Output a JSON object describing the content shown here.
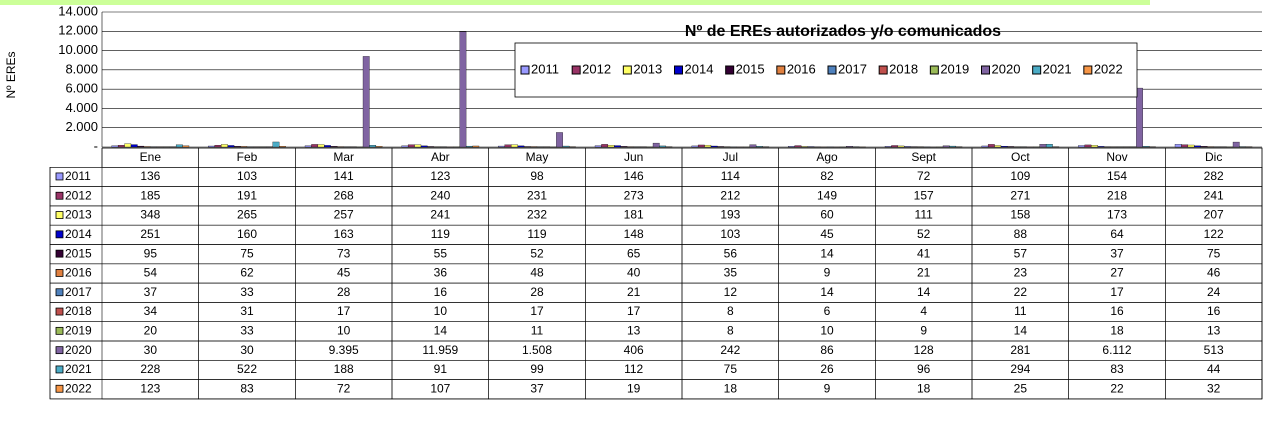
{
  "chart_data": {
    "type": "bar",
    "title": "Nº de EREs autorizados y/o comunicados",
    "y_label": "Nº EREs",
    "categories": [
      "Ene",
      "Feb",
      "Mar",
      "Abr",
      "May",
      "Jun",
      "Jul",
      "Ago",
      "Sept",
      "Oct",
      "Nov",
      "Dic"
    ],
    "ylim": [
      0,
      14000
    ],
    "yticks": [
      {
        "value": 0,
        "label": "-"
      },
      {
        "value": 2000,
        "label": "2.000"
      },
      {
        "value": 4000,
        "label": "4.000"
      },
      {
        "value": 6000,
        "label": "6.000"
      },
      {
        "value": 8000,
        "label": "8.000"
      },
      {
        "value": 10000,
        "label": "10.000"
      },
      {
        "value": 12000,
        "label": "12.000"
      },
      {
        "value": 14000,
        "label": "14.000"
      }
    ],
    "grid": true,
    "legend": "top-right",
    "series": [
      {
        "name": "2011",
        "color": "#9999ff",
        "values": [
          136,
          103,
          141,
          123,
          98,
          146,
          114,
          82,
          72,
          109,
          154,
          282
        ]
      },
      {
        "name": "2012",
        "color": "#993366",
        "values": [
          185,
          191,
          268,
          240,
          231,
          273,
          212,
          149,
          157,
          271,
          218,
          241
        ]
      },
      {
        "name": "2013",
        "color": "#ffff66",
        "values": [
          348,
          265,
          257,
          241,
          232,
          181,
          193,
          60,
          111,
          158,
          173,
          207
        ]
      },
      {
        "name": "2014",
        "color": "#0000cc",
        "values": [
          251,
          160,
          163,
          119,
          119,
          148,
          103,
          45,
          52,
          88,
          64,
          122
        ]
      },
      {
        "name": "2015",
        "color": "#330033",
        "values": [
          95,
          75,
          73,
          55,
          52,
          65,
          56,
          14,
          41,
          57,
          37,
          75
        ]
      },
      {
        "name": "2016",
        "color": "#e08040",
        "values": [
          54,
          62,
          45,
          36,
          48,
          40,
          35,
          9,
          21,
          23,
          27,
          46
        ]
      },
      {
        "name": "2017",
        "color": "#4f81bd",
        "values": [
          37,
          33,
          28,
          16,
          28,
          21,
          12,
          14,
          14,
          22,
          17,
          24
        ]
      },
      {
        "name": "2018",
        "color": "#c0504d",
        "values": [
          34,
          31,
          17,
          10,
          17,
          17,
          8,
          6,
          4,
          11,
          16,
          16
        ]
      },
      {
        "name": "2019",
        "color": "#9bbb59",
        "values": [
          20,
          33,
          10,
          14,
          11,
          13,
          8,
          10,
          9,
          14,
          18,
          13
        ]
      },
      {
        "name": "2020",
        "color": "#8064a2",
        "values": [
          30,
          30,
          9395,
          11959,
          1508,
          406,
          242,
          86,
          128,
          281,
          6112,
          513
        ],
        "value_labels": [
          "30",
          "30",
          "9.395",
          "11.959",
          "1.508",
          "406",
          "242",
          "86",
          "128",
          "281",
          "6.112",
          "513"
        ]
      },
      {
        "name": "2021",
        "color": "#4bacc6",
        "values": [
          228,
          522,
          188,
          91,
          99,
          112,
          75,
          26,
          96,
          294,
          83,
          44
        ]
      },
      {
        "name": "2022",
        "color": "#f79646",
        "values": [
          123,
          83,
          72,
          107,
          37,
          19,
          18,
          9,
          18,
          25,
          22,
          32
        ]
      }
    ]
  }
}
